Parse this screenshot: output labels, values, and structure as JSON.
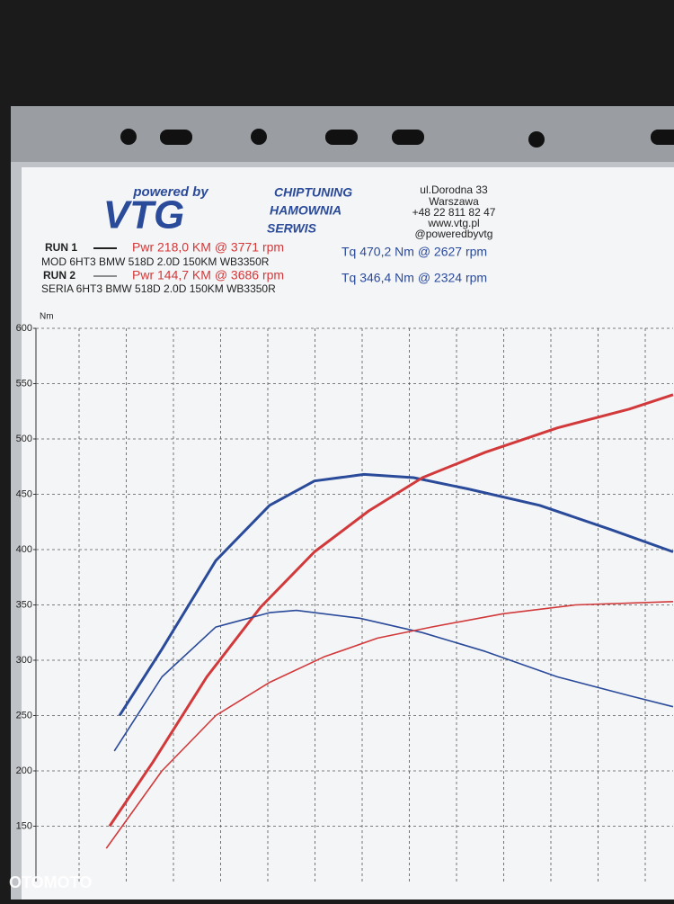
{
  "header": {
    "tagline": "powered by",
    "logo": "VTG",
    "services": [
      "CHIPTUNING",
      "HAMOWNIA",
      "SERWIS"
    ],
    "contact": [
      "ul.Dorodna 33",
      "Warszawa",
      "+48 22 811 82 47",
      "www.vtg.pl",
      "@poweredbyvtg"
    ]
  },
  "runs": [
    {
      "label": "RUN 1",
      "power": "Pwr 218,0 KM @ 3771 rpm",
      "torque": "Tq 470,2 Nm @ 2627 rpm",
      "car": "MOD 6HT3 BMW 518D 2.0D 150KM WB3350R"
    },
    {
      "label": "RUN 2",
      "power": "Pwr 144,7 KM @ 3686 rpm",
      "torque": "Tq 346,4 Nm @ 2324 rpm",
      "car": "SERIA 6HT3 BMW 518D 2.0D 150KM WB3350R"
    }
  ],
  "chart_data": {
    "type": "line",
    "y_label": "Nm",
    "xlim": [
      0,
      13.5
    ],
    "ylim": [
      100,
      600
    ],
    "yticks": [
      150,
      200,
      250,
      300,
      350,
      400,
      450,
      500,
      550,
      600
    ],
    "grid": true,
    "series": [
      {
        "color": "#2a4a9a",
        "width": 3,
        "x": [
          1.77,
          2.67,
          3.81,
          4.95,
          5.9,
          6.95,
          8.0,
          9.14,
          10.67,
          12.19,
          13.5
        ],
        "values": [
          250,
          310,
          390,
          440,
          462,
          468,
          465,
          455,
          440,
          418,
          398
        ]
      },
      {
        "color": "#d2393a",
        "width": 3,
        "x": [
          1.56,
          2.48,
          3.62,
          4.76,
          5.9,
          7.05,
          8.19,
          9.52,
          11.05,
          12.57,
          13.5
        ],
        "values": [
          150,
          208,
          285,
          348,
          398,
          435,
          465,
          488,
          510,
          527,
          540
        ]
      },
      {
        "color": "#2a4a9a",
        "width": 1.6,
        "x": [
          1.66,
          2.67,
          3.81,
          4.95,
          5.52,
          6.86,
          8.19,
          9.52,
          11.05,
          12.57,
          13.5
        ],
        "values": [
          218,
          285,
          330,
          343,
          345,
          338,
          325,
          308,
          285,
          268,
          258
        ]
      },
      {
        "color": "#d2393a",
        "width": 1.6,
        "x": [
          1.49,
          2.67,
          3.81,
          4.95,
          6.1,
          7.24,
          8.38,
          9.9,
          11.43,
          13.5
        ],
        "values": [
          130,
          200,
          250,
          280,
          303,
          320,
          330,
          342,
          350,
          353
        ]
      }
    ]
  },
  "watermark": "OTOMOTO"
}
